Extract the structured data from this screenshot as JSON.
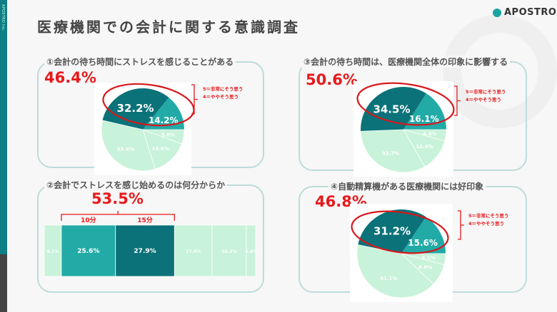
{
  "sidebar": {
    "vertical_text": "APOSTRO Inc."
  },
  "header": {
    "title": "医療機関での会計に関する意識調査",
    "logo": "APOSTRO"
  },
  "colors": {
    "dark": "#0b7279",
    "teal": "#22aaa7",
    "light": "#c8f2d9",
    "red": "#e8191c"
  },
  "legend": [
    "5＝非常にそう思う",
    "4＝ややそう思う"
  ],
  "chart_data": [
    {
      "id": "q1",
      "type": "pie",
      "title": "①会計の待ち時間にストレスを感じることがある",
      "highlight_total": "46.4%",
      "values": [
        32.2,
        14.2,
        5.6,
        14.6,
        33.4
      ],
      "labels": [
        "32.2%",
        "14.2%",
        "5.6%",
        "14.6%",
        "33.4%"
      ],
      "legend": [
        "5＝非常にそう思う",
        "4＝ややそう思う"
      ]
    },
    {
      "id": "q2",
      "type": "bar",
      "stacked": true,
      "title": "②会計でストレスを感じ始めるのは何分からか",
      "highlight_total": "53.5%",
      "categories": [
        "",
        "10分",
        "15分",
        "",
        "",
        ""
      ],
      "values": [
        8.1,
        25.6,
        27.9,
        17.8,
        16.2,
        4.4
      ],
      "labels": [
        "8.1%",
        "25.6%",
        "27.9%",
        "17.8%",
        "16.2%",
        "4.4%"
      ]
    },
    {
      "id": "q3",
      "type": "pie",
      "title": "③会計の待ち時間は、医療機関全体の印象に影響する",
      "highlight_total": "50.6%",
      "values": [
        34.5,
        16.1,
        4.3,
        12.4,
        32.7
      ],
      "labels": [
        "34.5%",
        "16.1%",
        "4.3%",
        "12.4%",
        "32.7%"
      ],
      "legend": [
        "5＝非常にそう思う",
        "4＝ややそう思う"
      ]
    },
    {
      "id": "q4",
      "type": "pie",
      "title": "④自動精算機がある医療機関には好印象",
      "highlight_total": "46.8%",
      "values": [
        31.2,
        15.6,
        4.1,
        8.0,
        41.1
      ],
      "labels": [
        "31.2%",
        "15.6%",
        "4.1%",
        "8.0%",
        "41.1%"
      ],
      "legend": [
        "5＝非常にそう思う",
        "4＝ややそう思う"
      ]
    }
  ]
}
